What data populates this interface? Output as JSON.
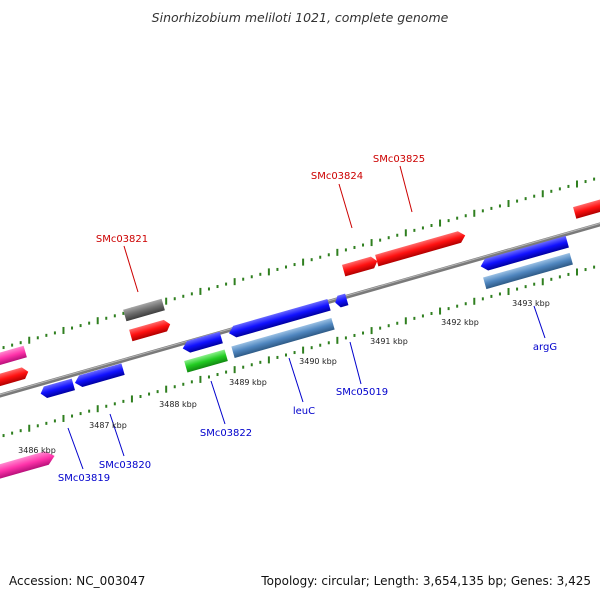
{
  "title": "Sinorhizobium meliloti 1021, complete genome",
  "footer": {
    "accession": "Accession: NC_003047",
    "topology": "Topology: circular; Length: 3,654,135 bp; Genes: 3,425"
  },
  "colors": {
    "backbone": "#808080",
    "tick": "#2f7f1f",
    "label_forward": "#cc0000",
    "label_reverse": "#0000cc"
  },
  "ticks": [
    "3486 kbp",
    "3487 kbp",
    "3488 kbp",
    "3489 kbp",
    "3490 kbp",
    "3491 kbp",
    "3492 kbp",
    "3493 kbp"
  ],
  "gene_labels": [
    {
      "id": "SMc03825",
      "strand": "forward"
    },
    {
      "id": "SMc03824",
      "strand": "forward"
    },
    {
      "id": "SMc03821",
      "strand": "forward"
    },
    {
      "id": "SMc03822",
      "strand": "reverse"
    },
    {
      "id": "leuC",
      "strand": "reverse"
    },
    {
      "id": "SMc05019",
      "strand": "reverse"
    },
    {
      "id": "argG",
      "strand": "reverse"
    },
    {
      "id": "SMc03820",
      "strand": "reverse"
    },
    {
      "id": "SMc03819",
      "strand": "reverse"
    }
  ]
}
